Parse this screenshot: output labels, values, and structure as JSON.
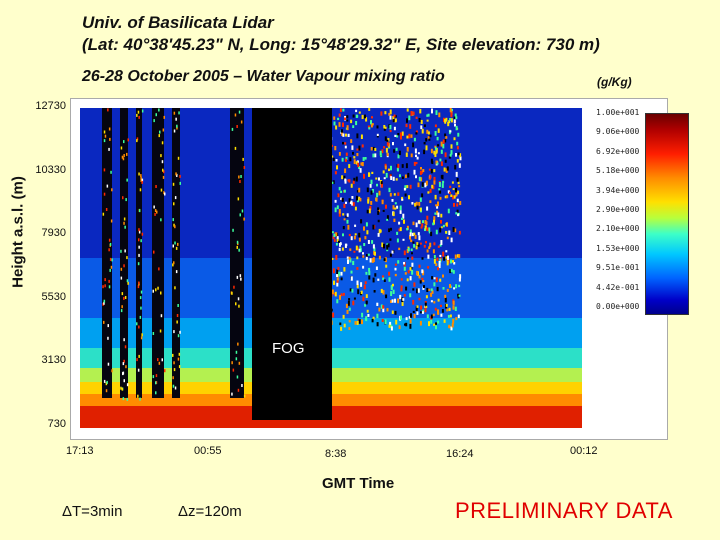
{
  "header": {
    "title_line1": "Univ. of Basilicata Lidar",
    "title_line2": "(Lat: 40°38'45.23\" N, Long: 15°48'29.32\" E, Site elevation: 730 m)",
    "subtitle": "26-28 October 2005 – Water Vapour mixing ratio",
    "units": "(g/Kg)"
  },
  "chart_data": {
    "type": "heatmap",
    "title": "26-28 October 2005 – Water Vapour mixing ratio",
    "xlabel": "GMT Time",
    "ylabel": "Height a.s.l. (m)",
    "x_ticks": [
      "17:13",
      "00:55",
      "8:38",
      "16:24",
      "00:12"
    ],
    "y_ticks": [
      "12730",
      "10330",
      "7930",
      "5530",
      "3130",
      "730"
    ],
    "ylim": [
      730,
      12730
    ],
    "colorbar": {
      "unit": "(g/Kg)",
      "labels": [
        "1.00e+001",
        "9.06e+000",
        "6.92e+000",
        "5.18e+000",
        "3.94e+000",
        "2.90e+000",
        "2.10e+000",
        "1.53e+000",
        "9.51e-001",
        "4.42e-001",
        "0.00e+000"
      ]
    },
    "annotation": "FOG"
  },
  "footer": {
    "delta_t": "ΔT=3min",
    "delta_z": "Δz=120m",
    "status": "PRELIMINARY DATA"
  },
  "colors": {
    "background": "#ffffcc",
    "status": "#e00000"
  }
}
